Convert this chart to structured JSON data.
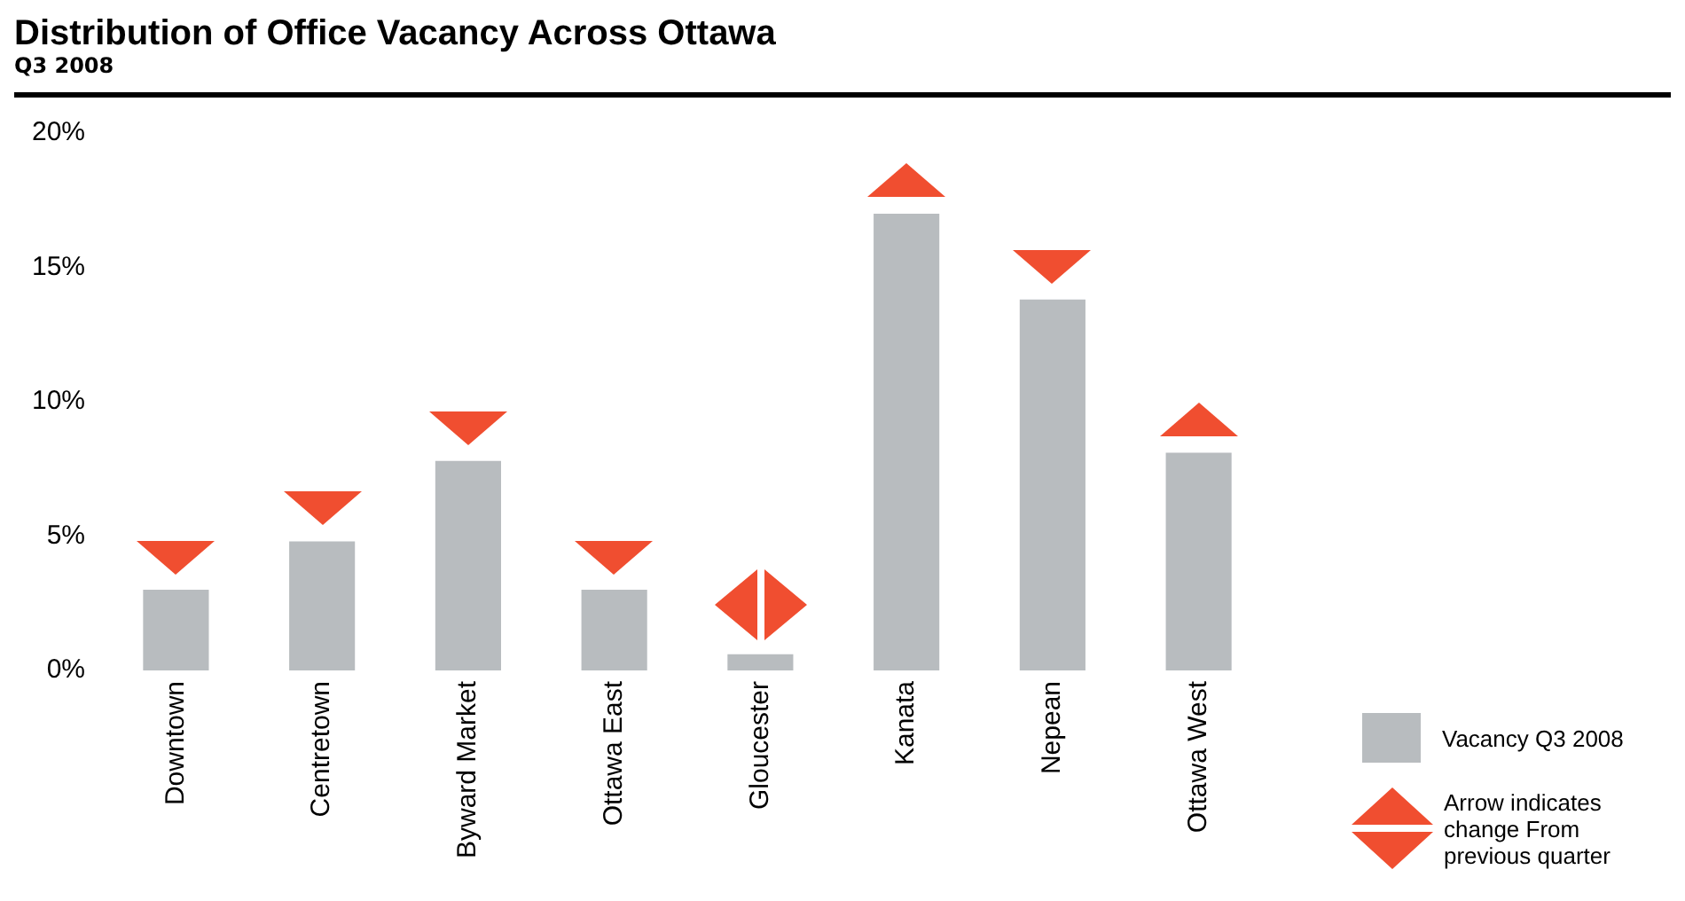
{
  "chart_data": {
    "type": "bar",
    "title": "Distribution of Office Vacancy Across Ottawa",
    "subtitle": "Q3 2008",
    "categories": [
      "Downtown",
      "Centretown",
      "Byward Market",
      "Ottawa East",
      "Gloucester",
      "Kanata",
      "Nepean",
      "Ottawa West"
    ],
    "series": [
      {
        "name": "Vacancy Q3 2008",
        "color": "#b8bcbf",
        "values": [
          3.0,
          4.8,
          7.8,
          3.0,
          0.6,
          17.0,
          13.8,
          8.1
        ]
      }
    ],
    "ylim": [
      0,
      20
    ],
    "yticks": [
      {
        "value": 0,
        "label": "0%"
      },
      {
        "value": 5,
        "label": "5%"
      },
      {
        "value": 10,
        "label": "10%"
      },
      {
        "value": 15,
        "label": "15%"
      },
      {
        "value": 20,
        "label": "20%"
      }
    ],
    "grid": false,
    "legend": "bottom right",
    "annotations": [
      "Arrow indicates change From previous quarter"
    ]
  }
}
